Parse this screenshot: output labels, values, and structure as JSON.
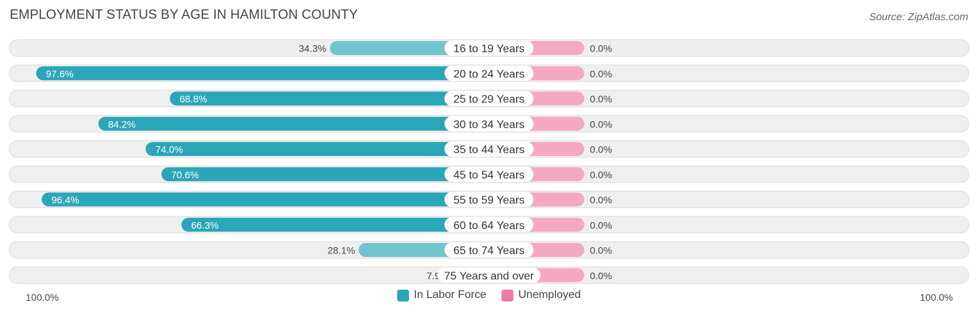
{
  "title": "EMPLOYMENT STATUS BY AGE IN HAMILTON COUNTY",
  "source": "Source: ZipAtlas.com",
  "colors": {
    "labor_force": "#2ba6b8",
    "labor_force_light": "#72c4cf",
    "unemployed": "#f07aa5",
    "unemployed_light": "#f5a8c4",
    "row_bg": "#efefef",
    "row_border": "#dddddd"
  },
  "axis": {
    "left_label": "100.0%",
    "right_label": "100.0%"
  },
  "legend": {
    "position": "bottom-center",
    "items": [
      {
        "label": "In Labor Force"
      },
      {
        "label": "Unemployed"
      }
    ]
  },
  "chart_data": {
    "type": "bar",
    "orientation": "horizontal-diverging",
    "title": "EMPLOYMENT STATUS BY AGE IN HAMILTON COUNTY",
    "categories": [
      "16 to 19 Years",
      "20 to 24 Years",
      "25 to 29 Years",
      "30 to 34 Years",
      "35 to 44 Years",
      "45 to 54 Years",
      "55 to 59 Years",
      "60 to 64 Years",
      "65 to 74 Years",
      "75 Years and over"
    ],
    "series": [
      {
        "name": "In Labor Force",
        "values": [
          34.3,
          97.6,
          68.8,
          84.2,
          74.0,
          70.6,
          96.4,
          66.3,
          28.1,
          7.9
        ],
        "labels": [
          "34.3%",
          "97.6%",
          "68.8%",
          "84.2%",
          "74.0%",
          "70.6%",
          "96.4%",
          "66.3%",
          "28.1%",
          "7.9%"
        ]
      },
      {
        "name": "Unemployed",
        "values": [
          0.0,
          0.0,
          0.0,
          0.0,
          0.0,
          0.0,
          0.0,
          0.0,
          0.0,
          0.0
        ],
        "labels": [
          "0.0%",
          "0.0%",
          "0.0%",
          "0.0%",
          "0.0%",
          "0.0%",
          "0.0%",
          "0.0%",
          "0.0%",
          "0.0%"
        ]
      }
    ],
    "xlim": [
      -100,
      100
    ],
    "grid": false
  }
}
